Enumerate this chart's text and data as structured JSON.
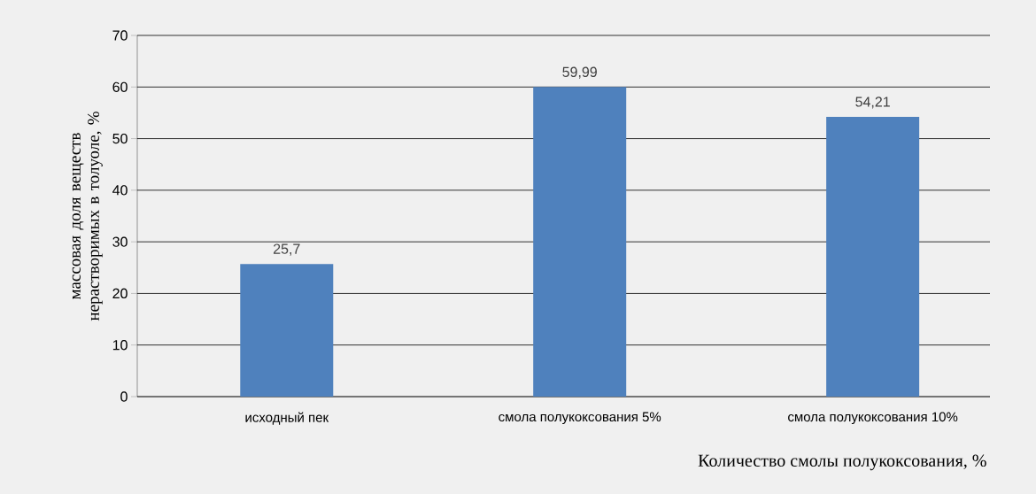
{
  "chart_data": {
    "type": "bar",
    "xlabel": "Количество смолы полукоксования, %",
    "ylabel": "массовая доля веществ нерастворимых в толуоле, %",
    "categories": [
      "исходный пек",
      "смола полукоксования 5%",
      "смола полукоксования 10%"
    ],
    "values": [
      25.7,
      59.99,
      54.21
    ],
    "value_labels": [
      "25,7",
      "59,99",
      "54,21"
    ],
    "color": "#4f81bd",
    "ylim": [
      0,
      70
    ],
    "yticks": [
      0,
      10,
      20,
      30,
      40,
      50,
      60,
      70
    ],
    "grid": "y"
  }
}
